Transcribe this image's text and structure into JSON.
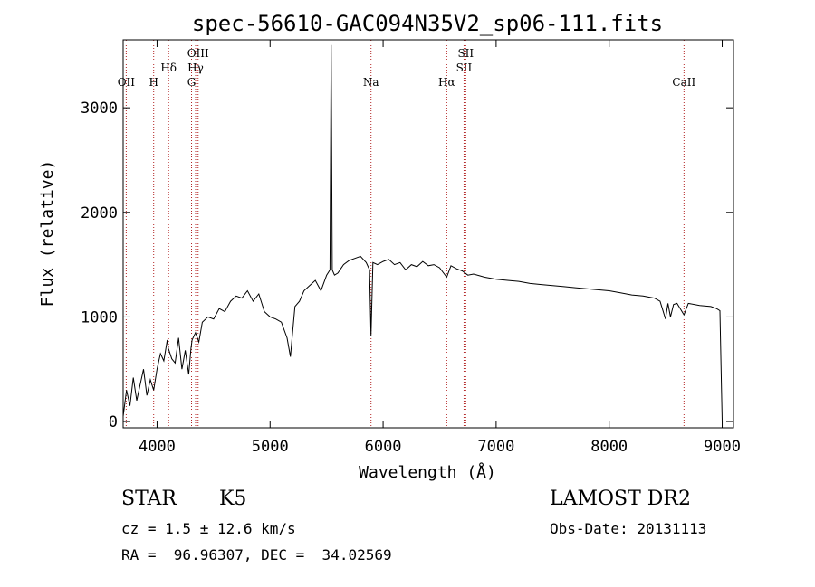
{
  "chart_data": {
    "type": "line",
    "title": "spec-56610-GAC094N35V2_sp06-111.fits",
    "xlabel": "Wavelength (Å)",
    "ylabel": "Flux (relative)",
    "xlim": [
      3700,
      9100
    ],
    "ylim": [
      -60,
      3650
    ],
    "xticks": [
      4000,
      5000,
      6000,
      7000,
      8000,
      9000
    ],
    "yticks": [
      0,
      1000,
      2000,
      3000
    ],
    "series": [
      {
        "x": [
          3700,
          3730,
          3760,
          3790,
          3820,
          3850,
          3880,
          3910,
          3940,
          3970,
          4000,
          4030,
          4060,
          4090,
          4100,
          4130,
          4160,
          4190,
          4220,
          4250,
          4280,
          4300,
          4310,
          4340,
          4370,
          4400,
          4450,
          4500,
          4550,
          4600,
          4650,
          4700,
          4750,
          4800,
          4850,
          4900,
          4950,
          5000,
          5050,
          5100,
          5150,
          5180,
          5220,
          5260,
          5300,
          5350,
          5400,
          5450,
          5500,
          5530,
          5540,
          5550,
          5570,
          5600,
          5650,
          5700,
          5750,
          5800,
          5850,
          5880,
          5893,
          5910,
          5950,
          6000,
          6050,
          6100,
          6150,
          6200,
          6250,
          6300,
          6350,
          6400,
          6450,
          6500,
          6563,
          6600,
          6650,
          6700,
          6750,
          6800,
          6900,
          7000,
          7100,
          7200,
          7300,
          7400,
          7500,
          7600,
          7700,
          7800,
          7900,
          8000,
          8100,
          8200,
          8300,
          8400,
          8450,
          8498,
          8520,
          8542,
          8570,
          8600,
          8662,
          8700,
          8800,
          8900,
          8950,
          8980,
          8990,
          9000
        ],
        "y": [
          50,
          300,
          150,
          420,
          200,
          350,
          500,
          250,
          400,
          300,
          500,
          650,
          580,
          780,
          700,
          600,
          560,
          800,
          500,
          680,
          450,
          700,
          780,
          850,
          760,
          950,
          1000,
          980,
          1080,
          1050,
          1150,
          1200,
          1180,
          1250,
          1150,
          1220,
          1050,
          1000,
          980,
          950,
          800,
          620,
          1100,
          1150,
          1250,
          1300,
          1350,
          1250,
          1400,
          1450,
          3600,
          1450,
          1400,
          1420,
          1500,
          1540,
          1560,
          1580,
          1520,
          1450,
          820,
          1520,
          1500,
          1530,
          1550,
          1500,
          1520,
          1450,
          1500,
          1480,
          1530,
          1490,
          1500,
          1470,
          1380,
          1490,
          1460,
          1440,
          1400,
          1410,
          1380,
          1360,
          1350,
          1340,
          1320,
          1310,
          1300,
          1290,
          1280,
          1270,
          1260,
          1250,
          1230,
          1210,
          1200,
          1180,
          1150,
          980,
          1130,
          1000,
          1120,
          1130,
          1020,
          1130,
          1110,
          1100,
          1080,
          1060,
          500,
          0
        ]
      }
    ],
    "line_markers": [
      {
        "label": "OII",
        "x": 3727
      },
      {
        "label": "H",
        "x": 3970
      },
      {
        "label": "Hδ",
        "x": 4102
      },
      {
        "label": "G",
        "x": 4305
      },
      {
        "label": "Hγ",
        "x": 4341
      },
      {
        "label": "OIII",
        "x": 4363
      },
      {
        "label": "Na",
        "x": 5893
      },
      {
        "label": "Hα",
        "x": 6563
      },
      {
        "label": "SII",
        "x": 6716
      },
      {
        "label": "SII",
        "x": 6731
      },
      {
        "label": "CaII",
        "x": 8662
      }
    ],
    "marker_color": "#b22222",
    "grid": false
  },
  "info": {
    "object_class": "STAR",
    "subclass": "K5",
    "survey": "LAMOST DR2",
    "redshift_text": "cz = 1.5 ± 12.6 km/s",
    "obs_date_text": "Obs-Date: 20131113",
    "coords_text": "RA =  96.96307, DEC =  34.02569"
  }
}
